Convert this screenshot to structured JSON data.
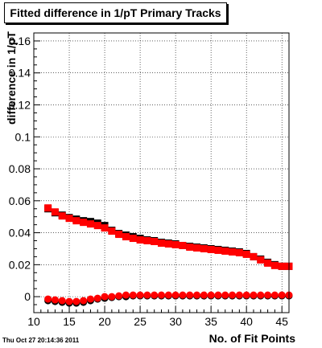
{
  "title": "Fitted difference in 1/pT Primary Tracks",
  "timestamp": "Thu Oct 27 20:14:36 2011",
  "colors": {
    "black_series": "#000000",
    "red_series": "#ff0000",
    "grid": "#000000",
    "frame": "#000000"
  },
  "chart_data": {
    "type": "scatter",
    "title": "Fitted difference in 1/pT Primary Tracks",
    "xlabel": "No. of Fit Points",
    "ylabel": "difference in 1/pT",
    "xlim": [
      10,
      46
    ],
    "ylim": [
      -0.01,
      0.165
    ],
    "grid": true,
    "legend": "none",
    "x_ticks": [
      10,
      15,
      20,
      25,
      30,
      35,
      40,
      45
    ],
    "y_ticks": [
      0,
      0.02,
      0.04,
      0.06,
      0.08,
      0.1,
      0.12,
      0.14,
      0.16
    ],
    "x_tick_labels": [
      "10",
      "15",
      "20",
      "25",
      "30",
      "35",
      "40",
      "45"
    ],
    "y_tick_labels": [
      "0",
      "0.02",
      "0.04",
      "0.06",
      "0.08",
      "0.1",
      "0.12",
      "0.14",
      "0.16"
    ],
    "series": [
      {
        "marker": "square",
        "color": "#000000",
        "x": [
          12,
          13,
          14,
          15,
          16,
          17,
          18,
          19,
          20,
          21,
          22,
          23,
          24,
          25,
          26,
          27,
          28,
          29,
          30,
          31,
          32,
          33,
          34,
          35,
          36,
          37,
          38,
          39,
          40,
          41,
          42,
          43,
          44,
          45,
          46
        ],
        "y": [
          0.055,
          0.0525,
          0.051,
          0.0495,
          0.0485,
          0.0475,
          0.047,
          0.046,
          0.0445,
          0.0415,
          0.0395,
          0.0385,
          0.0375,
          0.0365,
          0.0355,
          0.035,
          0.034,
          0.0335,
          0.033,
          0.032,
          0.0315,
          0.031,
          0.0305,
          0.03,
          0.0295,
          0.029,
          0.0285,
          0.028,
          0.027,
          0.025,
          0.0235,
          0.0215,
          0.02,
          0.019,
          0.019
        ]
      },
      {
        "marker": "square",
        "color": "#ff0000",
        "x": [
          12,
          13,
          14,
          15,
          16,
          17,
          18,
          19,
          20,
          21,
          22,
          23,
          24,
          25,
          26,
          27,
          28,
          29,
          30,
          31,
          32,
          33,
          34,
          35,
          36,
          37,
          38,
          39,
          40,
          41,
          42,
          43,
          44,
          45,
          46
        ],
        "y": [
          0.0555,
          0.053,
          0.0505,
          0.049,
          0.0475,
          0.0465,
          0.0455,
          0.0445,
          0.043,
          0.041,
          0.039,
          0.0375,
          0.0365,
          0.0355,
          0.035,
          0.0345,
          0.0335,
          0.033,
          0.0325,
          0.032,
          0.031,
          0.0305,
          0.03,
          0.0295,
          0.029,
          0.0285,
          0.028,
          0.0275,
          0.0265,
          0.025,
          0.023,
          0.021,
          0.0195,
          0.019,
          0.019
        ]
      },
      {
        "marker": "circle",
        "color": "#000000",
        "x": [
          12,
          13,
          14,
          15,
          16,
          17,
          18,
          19,
          20,
          21,
          22,
          23,
          24,
          25,
          26,
          27,
          28,
          29,
          30,
          31,
          32,
          33,
          34,
          35,
          36,
          37,
          38,
          39,
          40,
          41,
          42,
          43,
          44,
          45,
          46
        ],
        "y": [
          -0.0025,
          -0.003,
          -0.0035,
          -0.004,
          -0.004,
          -0.0035,
          -0.0025,
          -0.0015,
          -0.001,
          -0.0005,
          0,
          0,
          0.0005,
          0.0005,
          0.0005,
          0.0005,
          0.0005,
          0.0005,
          0.0005,
          0.0005,
          0.0005,
          0.0005,
          0.0005,
          0.0005,
          0.0005,
          0.0005,
          0.0005,
          0.0005,
          0.0005,
          0.0005,
          0.0005,
          0.0005,
          0.0005,
          0.0005,
          0.0005
        ]
      },
      {
        "marker": "circle",
        "color": "#ff0000",
        "x": [
          12,
          13,
          14,
          15,
          16,
          17,
          18,
          19,
          20,
          21,
          22,
          23,
          24,
          25,
          26,
          27,
          28,
          29,
          30,
          31,
          32,
          33,
          34,
          35,
          36,
          37,
          38,
          39,
          40,
          41,
          42,
          43,
          44,
          45,
          46
        ],
        "y": [
          -0.0015,
          -0.002,
          -0.0025,
          -0.003,
          -0.003,
          -0.0025,
          -0.0015,
          -0.001,
          0,
          0,
          0.0005,
          0.001,
          0.001,
          0.001,
          0.001,
          0.001,
          0.001,
          0.001,
          0.001,
          0.001,
          0.001,
          0.001,
          0.001,
          0.001,
          0.001,
          0.001,
          0.001,
          0.001,
          0.001,
          0.001,
          0.001,
          0.001,
          0.001,
          0.001,
          0.001
        ]
      }
    ]
  }
}
